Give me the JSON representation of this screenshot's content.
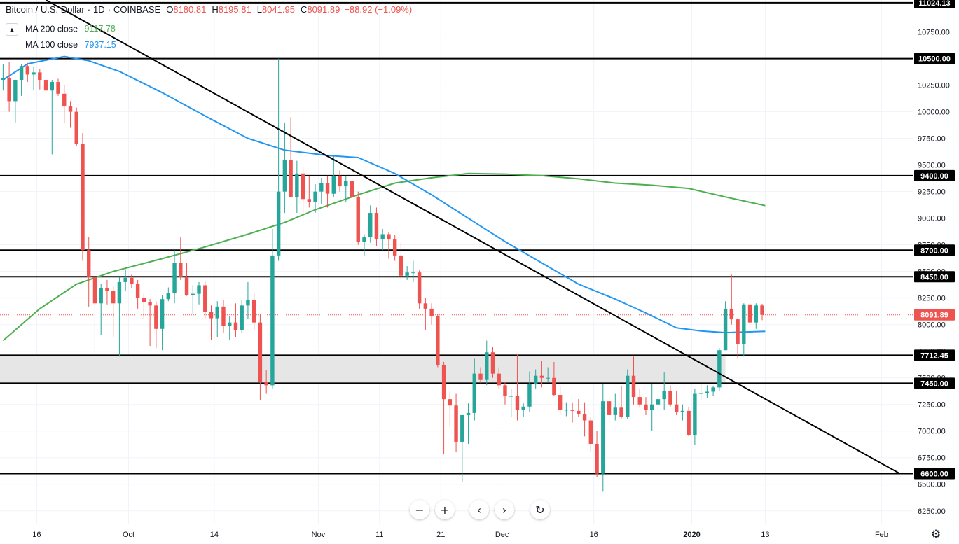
{
  "header": {
    "symbol": "Bitcoin / U.S. Dollar",
    "interval": "1D",
    "exchange": "COINBASE",
    "open_key": "O",
    "open": "8180.81",
    "high_key": "H",
    "high": "8195.81",
    "low_key": "L",
    "low": "8041.95",
    "close_key": "C",
    "close": "8091.89",
    "change": "−88.92 (−1.09%)"
  },
  "indicators": {
    "ma200_label": "MA 200 close",
    "ma200_value": "9117.78",
    "ma200_color": "#4caf50",
    "ma100_label": "MA 100 close",
    "ma100_value": "7937.15",
    "ma100_color": "#2196f3"
  },
  "colors": {
    "up": "#26a69a",
    "down": "#ef5350",
    "grid": "#f0f3fa",
    "line": "#000000",
    "zone": "#e6e6e6"
  },
  "icons": {
    "collapse": "chevron-up-icon",
    "settings": "gear-icon",
    "zoom_out": "minus-icon",
    "zoom_in": "plus-icon",
    "scroll_left": "chevron-left-icon",
    "scroll_right": "chevron-right-icon",
    "reset": "reset-icon"
  },
  "chart_data": {
    "type": "candlestick",
    "title": "Bitcoin / U.S. Dollar, 1D, COINBASE",
    "ylim": [
      6130,
      11050
    ],
    "y_ticks": [
      6250,
      6500,
      6750,
      7000,
      7250,
      7500,
      7750,
      8000,
      8250,
      8500,
      8750,
      9000,
      9250,
      9500,
      9750,
      10000,
      10250,
      10500,
      10750
    ],
    "x_ticks": [
      {
        "label": "16",
        "day": -0.5
      },
      {
        "label": "Oct",
        "day": 14.5
      },
      {
        "label": "14",
        "day": 28.5
      },
      {
        "label": "Nov",
        "day": 45.5
      },
      {
        "label": "11",
        "day": 55.5
      },
      {
        "label": "21",
        "day": 65.5
      },
      {
        "label": "Dec",
        "day": 75.5
      },
      {
        "label": "16",
        "day": 90.5
      },
      {
        "label": "2020",
        "day": 106.5
      },
      {
        "label": "13",
        "day": 118.5
      },
      {
        "label": "Feb",
        "day": 137.5
      }
    ],
    "x_range_days": [
      -6.5,
      142.6
    ],
    "horizontal_levels": [
      {
        "value": 11024.13,
        "label": "11024.13"
      },
      {
        "value": 10500.0,
        "label": "10500.00"
      },
      {
        "value": 9400.0,
        "label": "9400.00"
      },
      {
        "value": 8700.0,
        "label": "8700.00"
      },
      {
        "value": 8450.0,
        "label": "8450.00"
      },
      {
        "value": 7712.45,
        "label": "7712.45"
      },
      {
        "value": 7450.0,
        "label": "7450.00"
      },
      {
        "value": 6600.0,
        "label": "6600.00"
      }
    ],
    "last_price": {
      "value": 8091.89,
      "label": "8091.89"
    },
    "zone": {
      "from": 7450,
      "to": 7712.45,
      "start_day": -6.5,
      "end_day": 112
    },
    "trendline": {
      "start": {
        "day": 1,
        "price": 11050
      },
      "end": {
        "day": 140.5,
        "price": 6600
      }
    },
    "ma200": [
      [
        -6,
        7850
      ],
      [
        0,
        8150
      ],
      [
        6,
        8380
      ],
      [
        12,
        8500
      ],
      [
        20,
        8620
      ],
      [
        27,
        8730
      ],
      [
        34,
        8850
      ],
      [
        40,
        8960
      ],
      [
        45,
        9080
      ],
      [
        52,
        9220
      ],
      [
        58,
        9330
      ],
      [
        64,
        9380
      ],
      [
        70,
        9420
      ],
      [
        76,
        9415
      ],
      [
        82,
        9400
      ],
      [
        88,
        9370
      ],
      [
        94,
        9330
      ],
      [
        100,
        9310
      ],
      [
        106,
        9280
      ],
      [
        112,
        9200
      ],
      [
        116,
        9150
      ],
      [
        118.5,
        9118
      ]
    ],
    "ma100": [
      [
        -6,
        10300
      ],
      [
        -2,
        10450
      ],
      [
        4,
        10520
      ],
      [
        8,
        10480
      ],
      [
        13,
        10380
      ],
      [
        20,
        10180
      ],
      [
        28,
        9930
      ],
      [
        34,
        9750
      ],
      [
        40,
        9640
      ],
      [
        47,
        9590
      ],
      [
        52,
        9570
      ],
      [
        58,
        9420
      ],
      [
        64,
        9220
      ],
      [
        70,
        9000
      ],
      [
        76,
        8780
      ],
      [
        82,
        8580
      ],
      [
        88,
        8380
      ],
      [
        94,
        8240
      ],
      [
        99,
        8110
      ],
      [
        104,
        7970
      ],
      [
        108,
        7940
      ],
      [
        112,
        7925
      ],
      [
        118.5,
        7937
      ]
    ],
    "candles": [
      {
        "d": -6,
        "o": 10300,
        "h": 10450,
        "l": 10200,
        "c": 10320
      },
      {
        "d": -5,
        "o": 10320,
        "h": 10470,
        "l": 10000,
        "c": 10100
      },
      {
        "d": -4,
        "o": 10100,
        "h": 10300,
        "l": 9900,
        "c": 10300
      },
      {
        "d": -3,
        "o": 10300,
        "h": 10450,
        "l": 10150,
        "c": 10430
      },
      {
        "d": -2,
        "o": 10430,
        "h": 10460,
        "l": 10280,
        "c": 10350
      },
      {
        "d": -1,
        "o": 10350,
        "h": 10420,
        "l": 10200,
        "c": 10370
      },
      {
        "d": 0,
        "o": 10370,
        "h": 10400,
        "l": 10210,
        "c": 10300
      },
      {
        "d": 1,
        "o": 10300,
        "h": 10330,
        "l": 10180,
        "c": 10200
      },
      {
        "d": 2,
        "o": 10200,
        "h": 10300,
        "l": 9600,
        "c": 10280
      },
      {
        "d": 3,
        "o": 10280,
        "h": 10310,
        "l": 10150,
        "c": 10170
      },
      {
        "d": 4,
        "o": 10170,
        "h": 10250,
        "l": 9900,
        "c": 10050
      },
      {
        "d": 5,
        "o": 10050,
        "h": 10100,
        "l": 9850,
        "c": 10000
      },
      {
        "d": 6,
        "o": 10000,
        "h": 10040,
        "l": 9680,
        "c": 9700
      },
      {
        "d": 7,
        "o": 9700,
        "h": 9800,
        "l": 8600,
        "c": 8700
      },
      {
        "d": 8,
        "o": 8700,
        "h": 8820,
        "l": 8170,
        "c": 8450
      },
      {
        "d": 9,
        "o": 8450,
        "h": 8500,
        "l": 7700,
        "c": 8200
      },
      {
        "d": 10,
        "o": 8200,
        "h": 8380,
        "l": 7900,
        "c": 8340
      },
      {
        "d": 11,
        "o": 8340,
        "h": 8420,
        "l": 8190,
        "c": 8320
      },
      {
        "d": 12,
        "o": 8320,
        "h": 8360,
        "l": 7880,
        "c": 8200
      },
      {
        "d": 13,
        "o": 8200,
        "h": 8450,
        "l": 7700,
        "c": 8400
      },
      {
        "d": 14,
        "o": 8400,
        "h": 8520,
        "l": 8320,
        "c": 8440
      },
      {
        "d": 15,
        "o": 8440,
        "h": 8470,
        "l": 8340,
        "c": 8380
      },
      {
        "d": 16,
        "o": 8380,
        "h": 8420,
        "l": 8150,
        "c": 8250
      },
      {
        "d": 17,
        "o": 8250,
        "h": 8290,
        "l": 8050,
        "c": 8210
      },
      {
        "d": 18,
        "o": 8210,
        "h": 8240,
        "l": 7800,
        "c": 8180
      },
      {
        "d": 19,
        "o": 8180,
        "h": 8220,
        "l": 7780,
        "c": 7960
      },
      {
        "d": 20,
        "o": 7960,
        "h": 8280,
        "l": 7760,
        "c": 8240
      },
      {
        "d": 21,
        "o": 8240,
        "h": 8350,
        "l": 8220,
        "c": 8300
      },
      {
        "d": 22,
        "o": 8300,
        "h": 8700,
        "l": 8200,
        "c": 8580
      },
      {
        "d": 23,
        "o": 8580,
        "h": 8820,
        "l": 8420,
        "c": 8450
      },
      {
        "d": 24,
        "o": 8450,
        "h": 8580,
        "l": 8270,
        "c": 8280
      },
      {
        "d": 25,
        "o": 8280,
        "h": 8370,
        "l": 8100,
        "c": 8290
      },
      {
        "d": 26,
        "o": 8290,
        "h": 8400,
        "l": 8190,
        "c": 8370
      },
      {
        "d": 27,
        "o": 8370,
        "h": 8410,
        "l": 8060,
        "c": 8120
      },
      {
        "d": 28,
        "o": 8120,
        "h": 8180,
        "l": 7860,
        "c": 8060
      },
      {
        "d": 29,
        "o": 8060,
        "h": 8220,
        "l": 7880,
        "c": 8170
      },
      {
        "d": 30,
        "o": 8170,
        "h": 8230,
        "l": 7920,
        "c": 7990
      },
      {
        "d": 31,
        "o": 7990,
        "h": 8080,
        "l": 7860,
        "c": 8020
      },
      {
        "d": 32,
        "o": 8020,
        "h": 8200,
        "l": 7880,
        "c": 7950
      },
      {
        "d": 33,
        "o": 7950,
        "h": 8230,
        "l": 7920,
        "c": 8180
      },
      {
        "d": 34,
        "o": 8180,
        "h": 8400,
        "l": 8050,
        "c": 8230
      },
      {
        "d": 35,
        "o": 8230,
        "h": 8300,
        "l": 7950,
        "c": 8020
      },
      {
        "d": 36,
        "o": 8020,
        "h": 8100,
        "l": 7290,
        "c": 7460
      },
      {
        "d": 37,
        "o": 7460,
        "h": 7570,
        "l": 7350,
        "c": 7430
      },
      {
        "d": 38,
        "o": 7430,
        "h": 8900,
        "l": 7400,
        "c": 8650
      },
      {
        "d": 39,
        "o": 8650,
        "h": 10500,
        "l": 8600,
        "c": 9250
      },
      {
        "d": 40,
        "o": 9250,
        "h": 9900,
        "l": 9050,
        "c": 9550
      },
      {
        "d": 41,
        "o": 9550,
        "h": 9950,
        "l": 9200,
        "c": 9200
      },
      {
        "d": 42,
        "o": 9200,
        "h": 9540,
        "l": 9050,
        "c": 9420
      },
      {
        "d": 43,
        "o": 9420,
        "h": 9480,
        "l": 9000,
        "c": 9180
      },
      {
        "d": 44,
        "o": 9180,
        "h": 9400,
        "l": 9100,
        "c": 9150
      },
      {
        "d": 45,
        "o": 9150,
        "h": 9320,
        "l": 9050,
        "c": 9250
      },
      {
        "d": 46,
        "o": 9250,
        "h": 9380,
        "l": 9130,
        "c": 9330
      },
      {
        "d": 47,
        "o": 9330,
        "h": 9400,
        "l": 9100,
        "c": 9230
      },
      {
        "d": 48,
        "o": 9230,
        "h": 9580,
        "l": 9200,
        "c": 9400
      },
      {
        "d": 49,
        "o": 9400,
        "h": 9450,
        "l": 9250,
        "c": 9300
      },
      {
        "d": 50,
        "o": 9300,
        "h": 9400,
        "l": 9150,
        "c": 9350
      },
      {
        "d": 51,
        "o": 9350,
        "h": 9380,
        "l": 9100,
        "c": 9200
      },
      {
        "d": 52,
        "o": 9200,
        "h": 9250,
        "l": 8750,
        "c": 8780
      },
      {
        "d": 53,
        "o": 8780,
        "h": 8850,
        "l": 8650,
        "c": 8820
      },
      {
        "d": 54,
        "o": 8820,
        "h": 9120,
        "l": 8770,
        "c": 9050
      },
      {
        "d": 55,
        "o": 9050,
        "h": 9100,
        "l": 8740,
        "c": 8800
      },
      {
        "d": 56,
        "o": 8800,
        "h": 8900,
        "l": 8700,
        "c": 8850
      },
      {
        "d": 57,
        "o": 8850,
        "h": 8870,
        "l": 8620,
        "c": 8800
      },
      {
        "d": 58,
        "o": 8800,
        "h": 8840,
        "l": 8600,
        "c": 8650
      },
      {
        "d": 59,
        "o": 8650,
        "h": 8770,
        "l": 8420,
        "c": 8460
      },
      {
        "d": 60,
        "o": 8460,
        "h": 8550,
        "l": 8420,
        "c": 8490
      },
      {
        "d": 61,
        "o": 8490,
        "h": 8600,
        "l": 8400,
        "c": 8490
      },
      {
        "d": 62,
        "o": 8490,
        "h": 8510,
        "l": 8150,
        "c": 8200
      },
      {
        "d": 63,
        "o": 8200,
        "h": 8250,
        "l": 7950,
        "c": 8150
      },
      {
        "d": 64,
        "o": 8150,
        "h": 8200,
        "l": 8000,
        "c": 8080
      },
      {
        "d": 65,
        "o": 8080,
        "h": 8100,
        "l": 7600,
        "c": 7620
      },
      {
        "d": 66,
        "o": 7620,
        "h": 7650,
        "l": 6780,
        "c": 7300
      },
      {
        "d": 67,
        "o": 7300,
        "h": 7380,
        "l": 7050,
        "c": 7240
      },
      {
        "d": 68,
        "o": 7240,
        "h": 7350,
        "l": 6800,
        "c": 6900
      },
      {
        "d": 69,
        "o": 6900,
        "h": 7150,
        "l": 6520,
        "c": 7150
      },
      {
        "d": 70,
        "o": 7150,
        "h": 7260,
        "l": 6880,
        "c": 7170
      },
      {
        "d": 71,
        "o": 7170,
        "h": 7680,
        "l": 7100,
        "c": 7540
      },
      {
        "d": 72,
        "o": 7540,
        "h": 7600,
        "l": 7450,
        "c": 7480
      },
      {
        "d": 73,
        "o": 7480,
        "h": 7850,
        "l": 7430,
        "c": 7740
      },
      {
        "d": 74,
        "o": 7740,
        "h": 7790,
        "l": 7500,
        "c": 7540
      },
      {
        "d": 75,
        "o": 7540,
        "h": 7600,
        "l": 7400,
        "c": 7430
      },
      {
        "d": 76,
        "o": 7430,
        "h": 7460,
        "l": 7250,
        "c": 7330
      },
      {
        "d": 77,
        "o": 7330,
        "h": 7400,
        "l": 7130,
        "c": 7330
      },
      {
        "d": 78,
        "o": 7330,
        "h": 7720,
        "l": 7100,
        "c": 7200
      },
      {
        "d": 79,
        "o": 7200,
        "h": 7260,
        "l": 7130,
        "c": 7230
      },
      {
        "d": 80,
        "o": 7230,
        "h": 7560,
        "l": 7180,
        "c": 7440
      },
      {
        "d": 81,
        "o": 7440,
        "h": 7580,
        "l": 7400,
        "c": 7520
      },
      {
        "d": 82,
        "o": 7520,
        "h": 7660,
        "l": 7410,
        "c": 7500
      },
      {
        "d": 83,
        "o": 7500,
        "h": 7600,
        "l": 7460,
        "c": 7500
      },
      {
        "d": 84,
        "o": 7500,
        "h": 7650,
        "l": 7330,
        "c": 7340
      },
      {
        "d": 85,
        "o": 7340,
        "h": 7420,
        "l": 7150,
        "c": 7200
      },
      {
        "d": 86,
        "o": 7200,
        "h": 7270,
        "l": 7140,
        "c": 7200
      },
      {
        "d": 87,
        "o": 7200,
        "h": 7270,
        "l": 7080,
        "c": 7190
      },
      {
        "d": 88,
        "o": 7190,
        "h": 7300,
        "l": 7130,
        "c": 7160
      },
      {
        "d": 89,
        "o": 7160,
        "h": 7270,
        "l": 6950,
        "c": 7100
      },
      {
        "d": 90,
        "o": 7100,
        "h": 7130,
        "l": 6800,
        "c": 6880
      },
      {
        "d": 91,
        "o": 6880,
        "h": 7000,
        "l": 6570,
        "c": 6600
      },
      {
        "d": 92,
        "o": 6600,
        "h": 7440,
        "l": 6430,
        "c": 7280
      },
      {
        "d": 93,
        "o": 7280,
        "h": 7330,
        "l": 7060,
        "c": 7150
      },
      {
        "d": 94,
        "o": 7150,
        "h": 7350,
        "l": 7100,
        "c": 7220
      },
      {
        "d": 95,
        "o": 7220,
        "h": 7420,
        "l": 7120,
        "c": 7130
      },
      {
        "d": 96,
        "o": 7130,
        "h": 7580,
        "l": 7110,
        "c": 7520
      },
      {
        "d": 97,
        "o": 7520,
        "h": 7700,
        "l": 7250,
        "c": 7320
      },
      {
        "d": 98,
        "o": 7320,
        "h": 7400,
        "l": 7220,
        "c": 7250
      },
      {
        "d": 99,
        "o": 7250,
        "h": 7320,
        "l": 7150,
        "c": 7200
      },
      {
        "d": 100,
        "o": 7200,
        "h": 7440,
        "l": 7000,
        "c": 7250
      },
      {
        "d": 101,
        "o": 7250,
        "h": 7350,
        "l": 7200,
        "c": 7300
      },
      {
        "d": 102,
        "o": 7300,
        "h": 7550,
        "l": 7200,
        "c": 7380
      },
      {
        "d": 103,
        "o": 7380,
        "h": 7430,
        "l": 7230,
        "c": 7250
      },
      {
        "d": 104,
        "o": 7250,
        "h": 7380,
        "l": 7150,
        "c": 7180
      },
      {
        "d": 105,
        "o": 7180,
        "h": 7250,
        "l": 7100,
        "c": 7190
      },
      {
        "d": 106,
        "o": 7190,
        "h": 7230,
        "l": 6950,
        "c": 6960
      },
      {
        "d": 107,
        "o": 6960,
        "h": 7400,
        "l": 6870,
        "c": 7350
      },
      {
        "d": 108,
        "o": 7350,
        "h": 7440,
        "l": 7290,
        "c": 7360
      },
      {
        "d": 109,
        "o": 7360,
        "h": 7430,
        "l": 7310,
        "c": 7370
      },
      {
        "d": 110,
        "o": 7370,
        "h": 7420,
        "l": 7330,
        "c": 7410
      },
      {
        "d": 111,
        "o": 7410,
        "h": 7780,
        "l": 7380,
        "c": 7760
      },
      {
        "d": 112,
        "o": 7760,
        "h": 8220,
        "l": 7760,
        "c": 8150
      },
      {
        "d": 113,
        "o": 8150,
        "h": 8470,
        "l": 8000,
        "c": 8050
      },
      {
        "d": 114,
        "o": 8050,
        "h": 8060,
        "l": 7680,
        "c": 7820
      },
      {
        "d": 115,
        "o": 7820,
        "h": 8200,
        "l": 7700,
        "c": 8190
      },
      {
        "d": 116,
        "o": 8190,
        "h": 8280,
        "l": 7980,
        "c": 8020
      },
      {
        "d": 117,
        "o": 8020,
        "h": 8200,
        "l": 7960,
        "c": 8180
      },
      {
        "d": 118,
        "o": 8180,
        "h": 8196,
        "l": 8042,
        "c": 8092
      }
    ]
  }
}
